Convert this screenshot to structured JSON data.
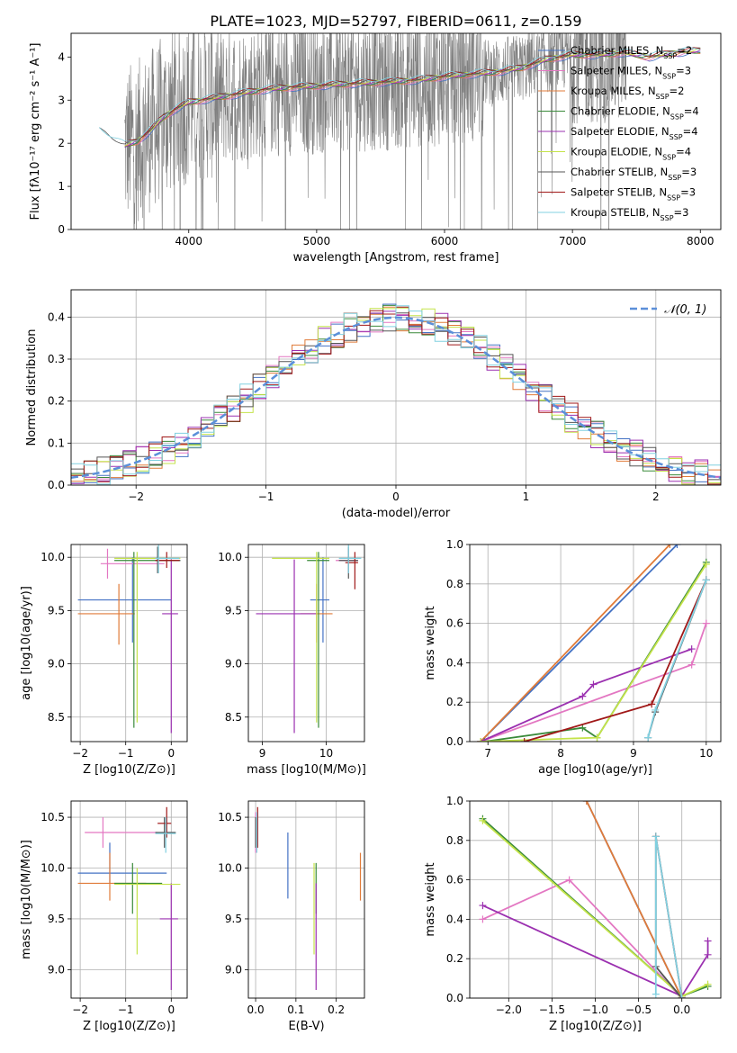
{
  "figure_title": "PLATE=1023, MJD=52797, FIBERID=0611, z=0.159",
  "models": [
    {
      "name": "Chabrier MILES",
      "color": "#4472c4"
    },
    {
      "name": "Salpeter MILES",
      "color": "#e377c2"
    },
    {
      "name": "Kroupa MILES",
      "color": "#e07b39"
    },
    {
      "name": "Chabrier ELODIE",
      "color": "#3a8a3a"
    },
    {
      "name": "Salpeter ELODIE",
      "color": "#9b30b0"
    },
    {
      "name": "Kroupa ELODIE",
      "color": "#c4e34a"
    },
    {
      "name": "Chabrier STELIB",
      "color": "#555555"
    },
    {
      "name": "Salpeter STELIB",
      "color": "#a01818"
    },
    {
      "name": "Kroupa STELIB",
      "color": "#80d0e0"
    }
  ],
  "chart_data": [
    {
      "id": "spectrum",
      "type": "line",
      "xlabel": "wavelength [Angstrom, rest frame]",
      "ylabel": "Flux [fλ10⁻¹⁷ erg cm⁻² s⁻¹ A⁻¹]",
      "xlim": [
        3080,
        8160
      ],
      "ylim": [
        0,
        4.55
      ],
      "xticks": [
        4000,
        5000,
        6000,
        7000,
        8000
      ],
      "yticks": [
        0,
        1,
        2,
        3,
        4
      ],
      "legend": {
        "position": "top-right",
        "entries": [
          "Chabrier MILES, N_SSP=2",
          "Salpeter MILES, N_SSP=3",
          "Kroupa MILES, N_SSP=2",
          "Chabrier ELODIE, N_SSP=4",
          "Salpeter ELODIE, N_SSP=4",
          "Kroupa ELODIE, N_SSP=4",
          "Chabrier STELIB, N_SSP=3",
          "Salpeter STELIB, N_SSP=3",
          "Kroupa STELIB, N_SSP=3"
        ],
        "n_ssp": [
          "2",
          "3",
          "2",
          "4",
          "4",
          "4",
          "3",
          "3",
          "3"
        ]
      },
      "continuum": {
        "x": [
          3300,
          3400,
          3500,
          3600,
          3700,
          3800,
          3900,
          4000,
          4100,
          4200,
          4300,
          4400,
          4500,
          4600,
          4800,
          5000,
          5200,
          5400,
          5600,
          5800,
          6000,
          6200,
          6400,
          6600,
          6800,
          7000,
          7200,
          7400,
          7600,
          7800,
          8000
        ],
        "y": [
          2.3,
          2.1,
          1.95,
          2.05,
          2.3,
          2.6,
          2.8,
          2.95,
          3.0,
          3.05,
          3.1,
          3.15,
          3.2,
          3.25,
          3.3,
          3.33,
          3.37,
          3.4,
          3.43,
          3.47,
          3.55,
          3.6,
          3.65,
          3.75,
          3.95,
          4.05,
          4.05,
          4.1,
          4.0,
          4.1,
          4.15
        ]
      }
    },
    {
      "id": "residuals",
      "type": "line",
      "xlabel": "(data-model)/error",
      "ylabel": "Normed distribution",
      "xlim": [
        -2.5,
        2.5
      ],
      "ylim": [
        0,
        0.465
      ],
      "xticks": [
        -2,
        -1,
        0,
        1,
        2
      ],
      "xticklabels": [
        "−2",
        "−1",
        "0",
        "1",
        "2"
      ],
      "yticks": [
        0.0,
        0.1,
        0.2,
        0.3,
        0.4
      ],
      "yticklabels": [
        "0.0",
        "0.1",
        "0.2",
        "0.3",
        "0.4"
      ],
      "legend": {
        "position": "top-right",
        "entries": [
          "𝒩(0, 1)"
        ]
      },
      "gaussian": {
        "mean": 0,
        "sigma": 1,
        "color": "#5b8fd9"
      },
      "bin_width": 0.1
    },
    {
      "id": "age-vs-Z",
      "type": "scatter",
      "xlabel": "Z [log10(Z/Z⊙)]",
      "ylabel": "age  [log10(age/yr)]",
      "xlim": [
        -2.2,
        0.35
      ],
      "ylim": [
        8.27,
        10.12
      ],
      "xticks": [
        -2,
        -1,
        0
      ],
      "xticklabels": [
        "−2",
        "−1",
        "0"
      ],
      "yticks": [
        8.5,
        9.0,
        9.5,
        10.0
      ],
      "yticklabels": [
        "8.5",
        "9.0",
        "9.5",
        "10.0"
      ],
      "points": [
        {
          "x": -0.85,
          "y": 9.6,
          "xe": [
            -2.05,
            0.0
          ],
          "ye": [
            9.2,
            10.0
          ],
          "m": 0
        },
        {
          "x": -1.4,
          "y": 9.94,
          "xe": [
            -1.55,
            -0.15
          ],
          "ye": [
            9.8,
            10.08
          ],
          "m": 1
        },
        {
          "x": -1.15,
          "y": 9.47,
          "xe": [
            -2.05,
            -0.8
          ],
          "ye": [
            9.18,
            9.75
          ],
          "m": 2
        },
        {
          "x": -0.82,
          "y": 9.97,
          "xe": [
            -1.25,
            0.2
          ],
          "ye": [
            8.4,
            10.05
          ],
          "m": 3
        },
        {
          "x": 0.0,
          "y": 9.47,
          "xe": [
            -0.2,
            0.15
          ],
          "ye": [
            8.35,
            9.98
          ],
          "m": 4
        },
        {
          "x": -0.75,
          "y": 9.99,
          "xe": [
            -1.25,
            0.2
          ],
          "ye": [
            8.45,
            10.05
          ],
          "m": 5
        },
        {
          "x": -0.3,
          "y": 9.97,
          "xe": [
            -0.35,
            0.2
          ],
          "ye": [
            9.85,
            10.1
          ],
          "m": 6
        },
        {
          "x": -0.1,
          "y": 9.97,
          "xe": [
            -0.35,
            0.18
          ],
          "ye": [
            9.9,
            10.05
          ],
          "m": 7
        },
        {
          "x": -0.28,
          "y": 9.99,
          "xe": [
            -0.35,
            0.18
          ],
          "ye": [
            9.85,
            10.12
          ],
          "m": 8
        }
      ]
    },
    {
      "id": "age-vs-mass",
      "type": "scatter",
      "xlabel": "mass [log10(M/M⊙)]",
      "ylabel": "",
      "xlim": [
        8.78,
        10.6
      ],
      "ylim": [
        8.27,
        10.12
      ],
      "xticks": [
        9,
        10
      ],
      "xticklabels": [
        "9",
        "10"
      ],
      "yticks": [
        8.5,
        9.0,
        9.5,
        10.0
      ],
      "yticklabels": [
        "8.5",
        "9.0",
        "9.5",
        "10.0"
      ],
      "points": [
        {
          "x": 9.95,
          "y": 9.6,
          "xe": [
            9.75,
            10.05
          ],
          "ye": [
            9.2,
            10.0
          ],
          "m": 0
        },
        {
          "x": 10.35,
          "y": 9.97,
          "xe": [
            10.15,
            10.5
          ],
          "ye": [
            9.85,
            10.08
          ],
          "m": 1
        },
        {
          "x": 9.85,
          "y": 9.47,
          "xe": [
            9.6,
            10.1
          ],
          "ye": [
            9.2,
            9.75
          ],
          "m": 2
        },
        {
          "x": 9.88,
          "y": 9.97,
          "xe": [
            9.7,
            10.05
          ],
          "ye": [
            8.4,
            10.05
          ],
          "m": 3
        },
        {
          "x": 9.5,
          "y": 9.47,
          "xe": [
            8.9,
            9.85
          ],
          "ye": [
            8.35,
            9.98
          ],
          "m": 4
        },
        {
          "x": 9.85,
          "y": 9.99,
          "xe": [
            9.15,
            10.05
          ],
          "ye": [
            8.45,
            10.05
          ],
          "m": 5
        },
        {
          "x": 10.35,
          "y": 9.97,
          "xe": [
            10.2,
            10.5
          ],
          "ye": [
            9.8,
            10.1
          ],
          "m": 6
        },
        {
          "x": 10.45,
          "y": 9.95,
          "xe": [
            10.3,
            10.5
          ],
          "ye": [
            9.7,
            10.05
          ],
          "m": 7
        },
        {
          "x": 10.35,
          "y": 9.99,
          "xe": [
            10.2,
            10.55
          ],
          "ye": [
            9.85,
            10.12
          ],
          "m": 8
        }
      ]
    },
    {
      "id": "massweight-vs-age",
      "type": "line",
      "xlabel": "age  [log10(age/yr)]",
      "ylabel": "mass weight",
      "xlim": [
        6.75,
        10.2
      ],
      "ylim": [
        0,
        1.0
      ],
      "xticks": [
        7,
        8,
        9,
        10
      ],
      "xticklabels": [
        "7",
        "8",
        "9",
        "10"
      ],
      "yticks": [
        0.0,
        0.2,
        0.4,
        0.6,
        0.8,
        1.0
      ],
      "yticklabels": [
        "0.0",
        "0.2",
        "0.4",
        "0.6",
        "0.8",
        "1.0"
      ],
      "series": [
        {
          "m": 0,
          "x": [
            6.9,
            9.6
          ],
          "y": [
            0.0,
            1.0
          ]
        },
        {
          "m": 1,
          "x": [
            6.9,
            9.8,
            10.0
          ],
          "y": [
            0.0,
            0.39,
            0.6
          ]
        },
        {
          "m": 2,
          "x": [
            6.9,
            9.5
          ],
          "y": [
            0.0,
            1.0
          ]
        },
        {
          "m": 3,
          "x": [
            6.95,
            8.3,
            8.5,
            10.0
          ],
          "y": [
            0.0,
            0.07,
            0.02,
            0.91
          ]
        },
        {
          "m": 4,
          "x": [
            6.9,
            8.3,
            8.45,
            9.8
          ],
          "y": [
            0.0,
            0.23,
            0.29,
            0.47
          ]
        },
        {
          "m": 5,
          "x": [
            6.9,
            8.5,
            10.0
          ],
          "y": [
            0.0,
            0.02,
            0.9
          ]
        },
        {
          "m": 6,
          "x": [
            9.2,
            9.3,
            10.0
          ],
          "y": [
            0.02,
            0.15,
            0.82
          ]
        },
        {
          "m": 7,
          "x": [
            7.5,
            9.25,
            10.0
          ],
          "y": [
            0.0,
            0.19,
            0.82
          ]
        },
        {
          "m": 8,
          "x": [
            9.2,
            9.3,
            10.0
          ],
          "y": [
            0.02,
            0.16,
            0.82
          ]
        }
      ]
    },
    {
      "id": "mass-vs-Z",
      "type": "scatter",
      "xlabel": "Z [log10(Z/Z⊙)]",
      "ylabel": "mass [log10(M/M⊙)]",
      "xlim": [
        -2.2,
        0.35
      ],
      "ylim": [
        8.72,
        10.66
      ],
      "xticks": [
        -2,
        -1,
        0
      ],
      "xticklabels": [
        "−2",
        "−1",
        "0"
      ],
      "yticks": [
        9.0,
        9.5,
        10.0,
        10.5
      ],
      "yticklabels": [
        "9.0",
        "9.5",
        "10.0",
        "10.5"
      ],
      "points": [
        {
          "x": -1.35,
          "y": 9.95,
          "xe": [
            -2.05,
            -0.1
          ],
          "ye": [
            9.85,
            10.25
          ],
          "m": 0
        },
        {
          "x": -1.5,
          "y": 10.35,
          "xe": [
            -1.9,
            -0.3
          ],
          "ye": [
            10.2,
            10.5
          ],
          "m": 1
        },
        {
          "x": -1.35,
          "y": 9.85,
          "xe": [
            -2.05,
            -0.55
          ],
          "ye": [
            9.68,
            10.15
          ],
          "m": 2
        },
        {
          "x": -0.85,
          "y": 9.85,
          "xe": [
            -1.25,
            -0.2
          ],
          "ye": [
            9.55,
            10.05
          ],
          "m": 3
        },
        {
          "x": 0.0,
          "y": 9.5,
          "xe": [
            -0.25,
            0.15
          ],
          "ye": [
            8.8,
            9.85
          ],
          "m": 4
        },
        {
          "x": -0.75,
          "y": 9.84,
          "xe": [
            -1.25,
            0.2
          ],
          "ye": [
            9.15,
            10.0
          ],
          "m": 5
        },
        {
          "x": -0.15,
          "y": 10.35,
          "xe": [
            -0.35,
            0.1
          ],
          "ye": [
            10.2,
            10.5
          ],
          "m": 6
        },
        {
          "x": -0.1,
          "y": 10.44,
          "xe": [
            -0.3,
            0.0
          ],
          "ye": [
            10.3,
            10.6
          ],
          "m": 7
        },
        {
          "x": -0.12,
          "y": 10.34,
          "xe": [
            -0.35,
            0.1
          ],
          "ye": [
            10.15,
            10.5
          ],
          "m": 8
        }
      ]
    },
    {
      "id": "mass-vs-ebv",
      "type": "scatter",
      "xlabel": "E(B-V)",
      "ylabel": "",
      "xlim": [
        -0.018,
        0.27
      ],
      "ylim": [
        8.72,
        10.66
      ],
      "xticks": [
        0.0,
        0.1,
        0.2
      ],
      "xticklabels": [
        "0.0",
        "0.1",
        "0.2"
      ],
      "yticks": [
        9.0,
        9.5,
        10.0,
        10.5
      ],
      "yticklabels": [
        "9.0",
        "9.5",
        "10.0",
        "10.5"
      ],
      "points": [
        {
          "x": 0.08,
          "y": 9.95,
          "xe": [
            0.08,
            0.08
          ],
          "ye": [
            9.7,
            10.35
          ],
          "m": 0
        },
        {
          "x": 0.0,
          "y": 10.35,
          "xe": [
            0.0,
            0.0
          ],
          "ye": [
            10.15,
            10.55
          ],
          "m": 1
        },
        {
          "x": 0.26,
          "y": 9.9,
          "xe": [
            0.26,
            0.26
          ],
          "ye": [
            9.68,
            10.15
          ],
          "m": 2
        },
        {
          "x": 0.15,
          "y": 9.8,
          "xe": [
            0.15,
            0.15
          ],
          "ye": [
            9.55,
            10.05
          ],
          "m": 3
        },
        {
          "x": 0.15,
          "y": 9.3,
          "xe": [
            0.15,
            0.15
          ],
          "ye": [
            8.8,
            9.85
          ],
          "m": 4
        },
        {
          "x": 0.145,
          "y": 9.6,
          "xe": [
            0.145,
            0.145
          ],
          "ye": [
            9.15,
            10.05
          ],
          "m": 5
        },
        {
          "x": 0.0,
          "y": 10.35,
          "xe": [
            0.0,
            0.0
          ],
          "ye": [
            10.2,
            10.5
          ],
          "m": 6
        },
        {
          "x": 0.005,
          "y": 10.4,
          "xe": [
            0.005,
            0.005
          ],
          "ye": [
            10.2,
            10.6
          ],
          "m": 7
        },
        {
          "x": 0.003,
          "y": 10.38,
          "xe": [
            0.003,
            0.003
          ],
          "ye": [
            10.15,
            10.55
          ],
          "m": 8
        }
      ]
    },
    {
      "id": "massweight-vs-Z",
      "type": "line",
      "xlabel": "Z [log10(Z/Z⊙)]",
      "ylabel": "mass weight",
      "xlim": [
        -2.45,
        0.45
      ],
      "ylim": [
        0,
        1.0
      ],
      "xticks": [
        -2.0,
        -1.5,
        -1.0,
        -0.5,
        0.0
      ],
      "xticklabels": [
        "−2.0",
        "−1.5",
        "−1.0",
        "−0.5",
        "0.0"
      ],
      "yticks": [
        0.0,
        0.2,
        0.4,
        0.6,
        0.8,
        1.0
      ],
      "yticklabels": [
        "0.0",
        "0.2",
        "0.4",
        "0.6",
        "0.8",
        "1.0"
      ],
      "series": [
        {
          "m": 0,
          "x": [
            -1.1,
            0.0
          ],
          "y": [
            1.0,
            0.0
          ]
        },
        {
          "m": 1,
          "x": [
            -2.3,
            -1.3,
            0.0
          ],
          "y": [
            0.4,
            0.6,
            0.0
          ]
        },
        {
          "m": 2,
          "x": [
            -1.1,
            0.0
          ],
          "y": [
            1.0,
            0.0
          ]
        },
        {
          "m": 3,
          "x": [
            -2.3,
            0.0,
            0.3
          ],
          "y": [
            0.91,
            0.01,
            0.06
          ]
        },
        {
          "m": 4,
          "x": [
            -2.3,
            0.0,
            0.3,
            0.3
          ],
          "y": [
            0.47,
            0.01,
            0.22,
            0.29
          ]
        },
        {
          "m": 5,
          "x": [
            -2.3,
            0.0,
            0.3
          ],
          "y": [
            0.9,
            0.01,
            0.07
          ]
        },
        {
          "m": 6,
          "x": [
            -0.3,
            -0.3,
            0.0
          ],
          "y": [
            0.82,
            0.16,
            0.0
          ]
        },
        {
          "m": 7,
          "x": [
            -0.3,
            0.0
          ],
          "y": [
            0.82,
            0.0
          ]
        },
        {
          "m": 8,
          "x": [
            -0.3,
            -0.3,
            0.0
          ],
          "y": [
            0.02,
            0.82,
            0.0
          ]
        }
      ]
    }
  ]
}
